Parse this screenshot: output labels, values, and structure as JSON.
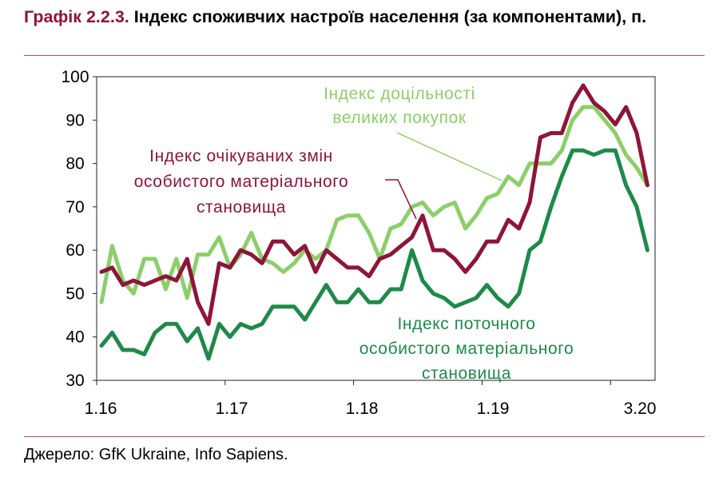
{
  "title_prefix": "Графік 2.2.3.",
  "title_text": "Індекс споживчих настроїв населення (за компонентами), п.",
  "source": "Джерело: GfK Ukraine, Info Sapiens.",
  "chart_data": {
    "type": "line",
    "ylim": [
      30,
      100
    ],
    "yticks": [
      30,
      40,
      50,
      60,
      70,
      80,
      90,
      100
    ],
    "xtick_labels": [
      "1.16",
      "1.17",
      "1.18",
      "1.19",
      "3.20"
    ],
    "grid": false,
    "annotations": [
      {
        "lines": [
          "Індекс доцільності",
          "великих покупок"
        ],
        "color": "#8ccf6a"
      },
      {
        "lines": [
          "Індекс очікуваних змін",
          "особистого матеріального",
          "становища"
        ],
        "color": "#8e1538"
      },
      {
        "lines": [
          "Індекс поточного",
          "особистого матеріального",
          "становища"
        ],
        "color": "#1e8a4a"
      }
    ],
    "series": [
      {
        "color": "#8ccf6a",
        "values": [
          48,
          61,
          53,
          50,
          58,
          58,
          51,
          58,
          49,
          59,
          59,
          63,
          56,
          59,
          64,
          58,
          57,
          55,
          57,
          60,
          58,
          60,
          67,
          68,
          68,
          64,
          58,
          65,
          66,
          70,
          71,
          68,
          70,
          71,
          65,
          68,
          72,
          73,
          77,
          75,
          80,
          80,
          80,
          83,
          90,
          93,
          93,
          90,
          87,
          82,
          79,
          75
        ]
      },
      {
        "color": "#8e1538",
        "values": [
          55,
          56,
          52,
          53,
          52,
          53,
          54,
          53,
          58,
          48,
          43,
          57,
          56,
          60,
          59,
          57,
          62,
          62,
          59,
          61,
          55,
          60,
          58,
          56,
          56,
          54,
          58,
          59,
          61,
          63,
          68,
          60,
          60,
          58,
          55,
          58,
          62,
          62,
          67,
          65,
          71,
          86,
          87,
          87,
          94,
          98,
          94,
          92,
          89,
          93,
          87,
          75
        ]
      },
      {
        "color": "#1e8a4a",
        "values": [
          38,
          41,
          37,
          37,
          36,
          41,
          43,
          43,
          39,
          42,
          35,
          43,
          40,
          43,
          42,
          43,
          47,
          47,
          47,
          44,
          48,
          52,
          48,
          48,
          51,
          48,
          48,
          51,
          51,
          60,
          53,
          50,
          49,
          47,
          48,
          49,
          52,
          49,
          47,
          50,
          60,
          62,
          70,
          77,
          83,
          83,
          82,
          83,
          83,
          75,
          70,
          60
        ]
      }
    ]
  }
}
